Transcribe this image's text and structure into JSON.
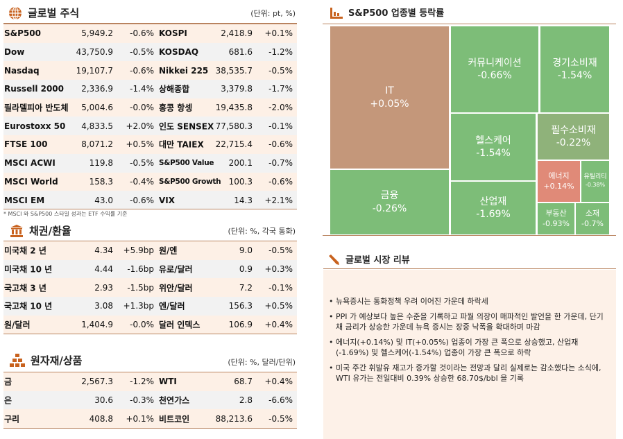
{
  "equities": {
    "title": "글로벌 주식",
    "unit": "(단위: pt, %)",
    "footnote": "* MSCI 와 S&P500 스타일 성과는 ETF 수익률 기준",
    "rows": [
      [
        "S&P500",
        "5,949.2",
        "-0.6%",
        "KOSPI",
        "2,418.9",
        "+0.1%"
      ],
      [
        "Dow",
        "43,750.9",
        "-0.5%",
        "KOSDAQ",
        "681.6",
        "-1.2%"
      ],
      [
        "Nasdaq",
        "19,107.7",
        "-0.6%",
        "Nikkei 225",
        "38,535.7",
        "-0.5%"
      ],
      [
        "Russell 2000",
        "2,336.9",
        "-1.4%",
        "상해종합",
        "3,379.8",
        "-1.7%"
      ],
      [
        "필라델피아 반도체",
        "5,004.6",
        "-0.0%",
        "홍콩 항셍",
        "19,435.8",
        "-2.0%"
      ],
      [
        "Eurostoxx 50",
        "4,833.5",
        "+2.0%",
        "인도 SENSEX",
        "77,580.3",
        "-0.1%"
      ],
      [
        "FTSE 100",
        "8,071.2",
        "+0.5%",
        "대만 TAIEX",
        "22,715.4",
        "-0.6%"
      ],
      [
        "MSCI ACWI",
        "119.8",
        "-0.5%",
        "S&P500 Value",
        "200.1",
        "-0.7%"
      ],
      [
        "MSCI World",
        "158.3",
        "-0.4%",
        "S&P500 Growth",
        "100.3",
        "-0.6%"
      ],
      [
        "MSCI EM",
        "43.0",
        "-0.6%",
        "VIX",
        "14.3",
        "+2.1%"
      ]
    ]
  },
  "bonds": {
    "title": "채권/환율",
    "unit": "(단위: %, 각국 통화)",
    "rows": [
      [
        "미국채 2 년",
        "4.34",
        "+5.9bp",
        "원/엔",
        "9.0",
        "-0.5%"
      ],
      [
        "미국채 10 년",
        "4.44",
        "-1.6bp",
        "유로/달러",
        "0.9",
        "+0.3%"
      ],
      [
        "국고채 3 년",
        "2.93",
        "-1.5bp",
        "위안/달러",
        "7.2",
        "-0.1%"
      ],
      [
        "국고채 10 년",
        "3.08",
        "+1.3bp",
        "엔/달러",
        "156.3",
        "+0.5%"
      ],
      [
        "원/달러",
        "1,404.9",
        "-0.0%",
        "달러 인덱스",
        "106.9",
        "+0.4%"
      ]
    ]
  },
  "commodities": {
    "title": "원자재/상품",
    "unit": "(단위: %, 달러/단위)",
    "rows": [
      [
        "금",
        "2,567.3",
        "-1.2%",
        "WTI",
        "68.7",
        "+0.4%"
      ],
      [
        "은",
        "30.6",
        "-0.3%",
        "천연가스",
        "2.8",
        "-6.6%"
      ],
      [
        "구리",
        "408.8",
        "+0.1%",
        "비트코인",
        "88,213.6",
        "-0.5%"
      ]
    ]
  },
  "treemap": {
    "title": "S&P500 업종별 등락률",
    "colors": {
      "up": "#c4977a",
      "down": "#7dbd78",
      "flat_down": "#8fb27a",
      "strong_up": "#e08a78"
    },
    "sectors": [
      {
        "name": "IT",
        "value": "+0.05%"
      },
      {
        "name": "금융",
        "value": "-0.26%"
      },
      {
        "name": "커뮤니케이션",
        "value": "-0.66%"
      },
      {
        "name": "경기소비재",
        "value": "-1.54%"
      },
      {
        "name": "헬스케어",
        "value": "-1.54%"
      },
      {
        "name": "필수소비재",
        "value": "-0.22%"
      },
      {
        "name": "에너지",
        "value": "+0.14%"
      },
      {
        "name": "유틸리티",
        "value": "-0.38%"
      },
      {
        "name": "산업재",
        "value": "-1.69%"
      },
      {
        "name": "부동산",
        "value": "-0.93%"
      },
      {
        "name": "소재",
        "value": "-0.7%"
      }
    ]
  },
  "review": {
    "title": "글로벌 시장 리뷰",
    "bullets": [
      "뉴욕증시는 통화정책 우려 이어진 가운데 하락세",
      "PPI 가 예상보다 높은 수준을 기록하고 파월 의장이 매파적인 발언을 한 가운데, 단기채 금리가 상승한 가운데 뉴욕 증시는 장중 낙폭을 확대하며 마감",
      "에너지(+0.14%) 및 IT(+0.05%) 업종이 가장 큰 폭으로 상승했고, 산업재(-1.69%) 및 헬스케어(-1.54%) 업종이 가장 큰 폭으로 하락",
      "미국 주간 휘발유 재고가 증가할 것이라는 전망과 달리 실제로는 감소했다는 소식에, WTI 유가는 전일대비 0.39% 상승한 68.70$/bbl 을 기록"
    ]
  }
}
